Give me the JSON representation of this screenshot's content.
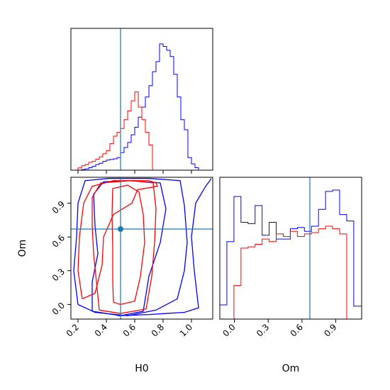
{
  "chart_data": {
    "type": "corner",
    "parameters": [
      "H0",
      "Om"
    ],
    "colors": {
      "red_series": "#ff0000",
      "blue_series": "#0000ff",
      "truth": "#1f77b4"
    },
    "truth": {
      "H0": 0.5,
      "Om": 0.67
    },
    "axes": {
      "H0": {
        "label": "H0",
        "lim": [
          0.15,
          1.15
        ],
        "ticks": [
          0.2,
          0.4,
          0.6,
          0.8,
          1.0
        ],
        "tick_labels": [
          "0.2",
          "0.4",
          "0.6",
          "0.8",
          "1.0"
        ]
      },
      "Om": {
        "label": "Om",
        "lim": [
          -0.13,
          1.13
        ],
        "ticks": [
          0.0,
          0.3,
          0.6,
          0.9
        ],
        "tick_labels": [
          "0.0",
          "0.3",
          "0.6",
          "0.9"
        ]
      }
    },
    "hist_H0": {
      "bin_edges": [
        0.15,
        0.175,
        0.2,
        0.225,
        0.25,
        0.275,
        0.3,
        0.325,
        0.35,
        0.375,
        0.4,
        0.425,
        0.45,
        0.475,
        0.5,
        0.525,
        0.55,
        0.575,
        0.6,
        0.625,
        0.65,
        0.675,
        0.7,
        0.725,
        0.75,
        0.775,
        0.8,
        0.825,
        0.85,
        0.875,
        0.9,
        0.925,
        0.95,
        0.975,
        1.0,
        1.025,
        1.05,
        1.075,
        1.1,
        1.125,
        1.15
      ],
      "red": [
        0,
        0,
        0.018,
        0.035,
        0.045,
        0.062,
        0.07,
        0.088,
        0.105,
        0.13,
        0.155,
        0.21,
        0.27,
        0.3,
        0.33,
        0.4,
        0.47,
        0.55,
        0.62,
        0.5,
        0.4,
        0.3,
        0.2,
        0,
        0,
        0,
        0,
        0,
        0,
        0,
        0,
        0,
        0,
        0,
        0,
        0,
        0,
        0,
        0,
        0
      ],
      "blue": [
        0,
        0,
        0,
        0.005,
        0.01,
        0.02,
        0.03,
        0.045,
        0.055,
        0.07,
        0.08,
        0.085,
        0.09,
        0.1,
        0.14,
        0.18,
        0.22,
        0.28,
        0.34,
        0.42,
        0.5,
        0.58,
        0.67,
        0.78,
        0.86,
        1.0,
        0.98,
        0.95,
        0.9,
        0.76,
        0.58,
        0.4,
        0.32,
        0.1,
        0.05,
        0.02,
        0,
        0,
        0,
        0
      ]
    },
    "hist_Om": {
      "bin_edges": [
        -0.13,
        -0.0674,
        -0.0047,
        0.0579,
        0.1205,
        0.1832,
        0.2458,
        0.3084,
        0.3711,
        0.4337,
        0.4963,
        0.559,
        0.6216,
        0.6842,
        0.7469,
        0.8095,
        0.8721,
        0.9347,
        0.9974,
        1.06,
        1.13
      ],
      "red": [
        0,
        0,
        0.26,
        0.55,
        0.56,
        0.58,
        0.62,
        0.6,
        0.66,
        0.64,
        0.68,
        0.64,
        0.66,
        0.67,
        0.7,
        0.72,
        0.7,
        0.66,
        0,
        0
      ],
      "blue": [
        0.11,
        0.6,
        0.95,
        0.75,
        0.74,
        0.88,
        0.65,
        0.75,
        0.62,
        0.62,
        0.7,
        0.71,
        0.68,
        0.72,
        0.85,
        0.99,
        1.0,
        0.81,
        0.76,
        0.1
      ]
    },
    "contours": {
      "red": [
        [
          [
            0.45,
            0.02
          ],
          [
            0.445,
            0.2
          ],
          [
            0.445,
            0.5
          ],
          [
            0.44,
            0.8
          ],
          [
            0.445,
            1.03
          ],
          [
            0.55,
            1.06
          ],
          [
            0.63,
            1.0
          ],
          [
            0.66,
            0.8
          ],
          [
            0.67,
            0.55
          ],
          [
            0.64,
            0.25
          ],
          [
            0.6,
            0.03
          ],
          [
            0.5,
            0.0
          ],
          [
            0.45,
            0.02
          ]
        ],
        [
          [
            0.35,
            -0.05
          ],
          [
            0.33,
            0.2
          ],
          [
            0.31,
            0.45
          ],
          [
            0.3,
            0.7
          ],
          [
            0.3,
            0.95
          ],
          [
            0.36,
            1.08
          ],
          [
            0.58,
            1.1
          ],
          [
            0.73,
            1.08
          ],
          [
            0.75,
            0.85
          ],
          [
            0.74,
            0.55
          ],
          [
            0.72,
            0.25
          ],
          [
            0.68,
            -0.04
          ],
          [
            0.5,
            -0.08
          ],
          [
            0.35,
            -0.05
          ]
        ],
        [
          [
            0.23,
            0.05
          ],
          [
            0.2,
            0.3
          ],
          [
            0.21,
            0.6
          ],
          [
            0.24,
            0.9
          ],
          [
            0.3,
            1.05
          ],
          [
            0.45,
            1.1
          ],
          [
            0.7,
            1.1
          ],
          [
            0.75,
            1.08
          ],
          [
            0.76,
            1.05
          ],
          [
            0.62,
            1.02
          ],
          [
            0.58,
            0.9
          ],
          [
            0.45,
            0.8
          ],
          [
            0.38,
            0.6
          ],
          [
            0.37,
            0.35
          ],
          [
            0.32,
            0.1
          ],
          [
            0.23,
            0.05
          ]
        ]
      ],
      "blue": [
        [
          [
            0.3,
            -0.06
          ],
          [
            0.3,
            0.2
          ],
          [
            0.34,
            0.45
          ],
          [
            0.32,
            0.7
          ],
          [
            0.31,
            0.98
          ],
          [
            0.38,
            1.09
          ],
          [
            0.55,
            1.1
          ],
          [
            0.78,
            1.08
          ],
          [
            0.82,
            0.85
          ],
          [
            0.78,
            0.55
          ],
          [
            0.7,
            0.25
          ],
          [
            0.66,
            -0.06
          ],
          [
            0.5,
            -0.1
          ],
          [
            0.3,
            -0.06
          ]
        ],
        [
          [
            0.2,
            0.0
          ],
          [
            0.17,
            0.3
          ],
          [
            0.19,
            0.6
          ],
          [
            0.2,
            0.9
          ],
          [
            0.25,
            1.1
          ],
          [
            0.42,
            1.12
          ],
          [
            0.7,
            1.12
          ],
          [
            0.92,
            1.1
          ],
          [
            0.95,
            0.88
          ],
          [
            0.97,
            0.55
          ],
          [
            0.95,
            0.3
          ],
          [
            0.9,
            0.05
          ],
          [
            0.75,
            -0.05
          ],
          [
            0.55,
            -0.1
          ],
          [
            0.32,
            -0.07
          ],
          [
            0.2,
            0.0
          ]
        ],
        [
          [
            0.48,
            -0.1
          ],
          [
            0.7,
            -0.09
          ],
          [
            0.82,
            -0.08
          ],
          [
            0.95,
            -0.07
          ],
          [
            1.05,
            -0.03
          ],
          [
            1.02,
            0.3
          ],
          [
            1.0,
            0.6
          ],
          [
            1.03,
            0.9
          ],
          [
            1.1,
            1.05
          ],
          [
            1.13,
            1.1
          ],
          [
            1.14,
            1.12
          ]
        ]
      ]
    }
  }
}
